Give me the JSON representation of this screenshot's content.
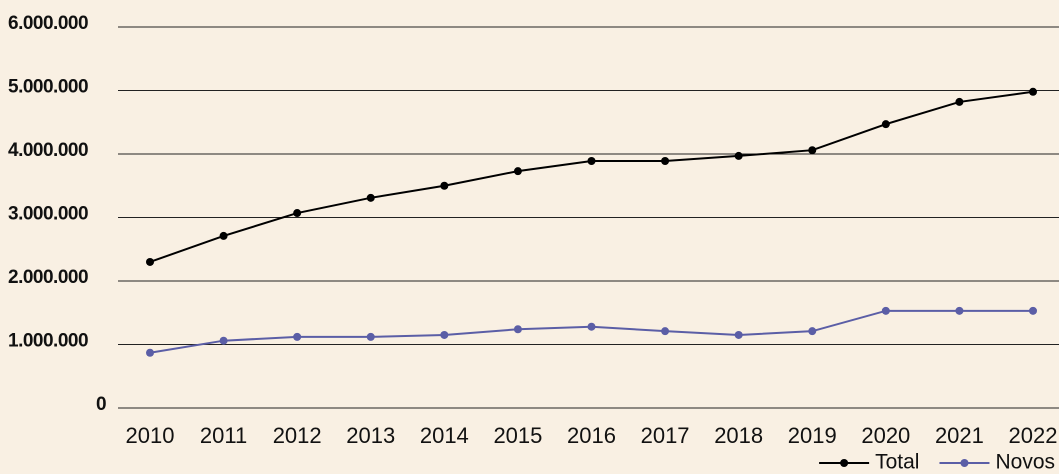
{
  "chart_data": {
    "type": "line",
    "categories": [
      "2010",
      "2011",
      "2012",
      "2013",
      "2014",
      "2015",
      "2016",
      "2017",
      "2018",
      "2019",
      "2020",
      "2021",
      "2022"
    ],
    "series": [
      {
        "name": "Total",
        "color": "#000000",
        "values": [
          2300000,
          2710000,
          3070000,
          3310000,
          3500000,
          3730000,
          3890000,
          3890000,
          3970000,
          4060000,
          4470000,
          4820000,
          4980000
        ]
      },
      {
        "name": "Novos",
        "color": "#5b5ea6",
        "values": [
          870000,
          1060000,
          1120000,
          1120000,
          1150000,
          1240000,
          1280000,
          1210000,
          1150000,
          1210000,
          1530000,
          1530000,
          1530000
        ]
      }
    ],
    "ylim": [
      0,
      6000000
    ],
    "yticks": [
      0,
      {
        "value": 1000000,
        "label": "1.000.000"
      },
      {
        "value": 2000000,
        "label": "2.000.000"
      },
      {
        "value": 3000000,
        "label": "3.000.000"
      },
      {
        "value": 4000000,
        "label": "4.000.000"
      },
      {
        "value": 5000000,
        "label": "5.000.000"
      },
      {
        "value": 6000000,
        "label": "6.000.000"
      }
    ],
    "grid": true,
    "legend": "bottom-right"
  }
}
